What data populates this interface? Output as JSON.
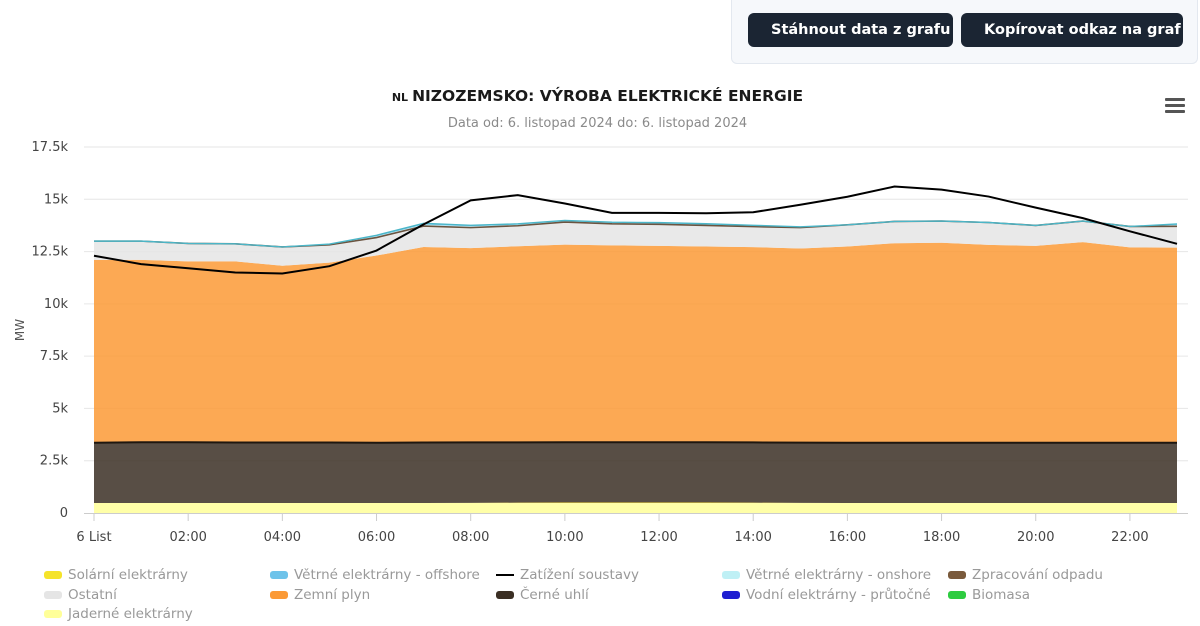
{
  "toolbar": {
    "download_label": "Stáhnout data z grafu",
    "copy_label": "Kopírovat odkaz na graf"
  },
  "chart_data": {
    "type": "area",
    "title_flag": "NL",
    "title": "NIZOZEMSKO: VÝROBA ELEKTRICKÉ ENERGIE",
    "subtitle": "Data od: 6. listopad 2024 do: 6. listopad 2024",
    "ylabel": "MW",
    "ylim": [
      0,
      17500
    ],
    "yticks": [
      0,
      2500,
      5000,
      7500,
      10000,
      12500,
      15000,
      17500
    ],
    "ytick_labels": [
      "0",
      "2.5k",
      "5k",
      "7.5k",
      "10k",
      "12.5k",
      "15k",
      "17.5k"
    ],
    "x": [
      0,
      1,
      2,
      3,
      4,
      5,
      6,
      7,
      8,
      9,
      10,
      11,
      12,
      13,
      14,
      15,
      16,
      17,
      18,
      19,
      20,
      21,
      22,
      23
    ],
    "xticks": [
      0,
      2,
      4,
      6,
      8,
      10,
      12,
      14,
      16,
      18,
      20,
      22
    ],
    "xtick_labels": [
      "6 List",
      "02:00",
      "04:00",
      "06:00",
      "08:00",
      "10:00",
      "12:00",
      "14:00",
      "16:00",
      "18:00",
      "20:00",
      "22:00"
    ],
    "stacked_series": [
      {
        "name": "Jaderné elektrárny",
        "color": "#ffff99",
        "values": [
          480,
          480,
          480,
          480,
          480,
          480,
          480,
          480,
          480,
          480,
          480,
          480,
          480,
          480,
          480,
          480,
          480,
          480,
          480,
          480,
          480,
          480,
          480,
          480
        ]
      },
      {
        "name": "Solární elektrárny",
        "color": "#f2d21b",
        "values": [
          0,
          0,
          0,
          0,
          0,
          0,
          0,
          0,
          5,
          15,
          20,
          25,
          25,
          20,
          15,
          5,
          0,
          0,
          0,
          0,
          0,
          0,
          0,
          0
        ]
      },
      {
        "name": "Černé uhlí",
        "color": "#3b2f24",
        "values": [
          2880,
          2900,
          2900,
          2890,
          2890,
          2890,
          2880,
          2890,
          2890,
          2880,
          2880,
          2880,
          2880,
          2880,
          2880,
          2880,
          2880,
          2880,
          2880,
          2880,
          2880,
          2880,
          2880,
          2880
        ]
      },
      {
        "name": "Zemní plyn",
        "color": "#fb9a36",
        "values": [
          8740,
          8720,
          8650,
          8660,
          8450,
          8600,
          8950,
          9350,
          9290,
          9380,
          9450,
          9410,
          9390,
          9360,
          9340,
          9280,
          9380,
          9540,
          9560,
          9460,
          9410,
          9590,
          9340,
          9330
        ]
      },
      {
        "name": "Ostatní",
        "color": "#e5e5e5",
        "values": [
          900,
          900,
          860,
          840,
          900,
          850,
          860,
          1000,
          980,
          980,
          1080,
          1030,
          1030,
          1010,
          980,
          1000,
          1040,
          1040,
          1040,
          1070,
          980,
          1010,
          1000,
          1020
        ]
      },
      {
        "name": "Zpracování odpadu",
        "color": "#7a5a3c",
        "values": [
          0,
          0,
          0,
          0,
          0,
          0,
          0,
          0,
          0,
          0,
          0,
          0,
          0,
          0,
          0,
          0,
          0,
          0,
          0,
          0,
          0,
          0,
          0,
          0
        ]
      },
      {
        "name": "Biomasa",
        "color": "#2ecc40",
        "values": [
          0,
          0,
          0,
          0,
          0,
          0,
          0,
          0,
          0,
          0,
          0,
          0,
          0,
          0,
          0,
          0,
          0,
          0,
          0,
          0,
          0,
          0,
          0,
          0
        ]
      },
      {
        "name": "Vodní elektrárny - průtočné",
        "color": "#1f1fd1",
        "values": [
          0,
          0,
          0,
          0,
          0,
          0,
          0,
          0,
          0,
          0,
          0,
          0,
          0,
          0,
          0,
          0,
          0,
          0,
          0,
          0,
          0,
          0,
          0,
          0
        ]
      },
      {
        "name": "Větrné elektrárny - onshore",
        "color": "#bff0f5",
        "values": [
          0,
          0,
          0,
          0,
          0,
          20,
          60,
          70,
          60,
          50,
          40,
          40,
          40,
          40,
          30,
          20,
          0,
          0,
          0,
          0,
          0,
          0,
          0,
          60
        ]
      },
      {
        "name": "Větrné elektrárny - offshore",
        "color": "#6ec3ea",
        "values": [
          0,
          0,
          0,
          0,
          0,
          20,
          50,
          60,
          50,
          40,
          40,
          40,
          40,
          40,
          30,
          20,
          0,
          0,
          0,
          0,
          0,
          0,
          0,
          50
        ]
      }
    ],
    "load_series": {
      "name": "Zatížení soustavy",
      "color": "#000000",
      "values": [
        12300,
        11900,
        11700,
        11500,
        11450,
        11800,
        12550,
        13800,
        14950,
        15200,
        14800,
        14350,
        14350,
        14330,
        14380,
        14740,
        15120,
        15610,
        15460,
        15130,
        14600,
        14100,
        13470,
        12870
      ]
    },
    "legend": {
      "placement": "bottom",
      "items": [
        {
          "label": "Solární elektrárny",
          "color": "#f5e32a",
          "kind": "area"
        },
        {
          "label": "Větrné elektrárny - offshore",
          "color": "#6ec3ea",
          "kind": "area"
        },
        {
          "label": "Zatížení soustavy",
          "color": "#000000",
          "kind": "line"
        },
        {
          "label": "Větrné elektrárny - onshore",
          "color": "#bff0f5",
          "kind": "area"
        },
        {
          "label": "Zpracování odpadu",
          "color": "#7a5a3c",
          "kind": "area"
        },
        {
          "label": "Ostatní",
          "color": "#e5e5e5",
          "kind": "area"
        },
        {
          "label": "Zemní plyn",
          "color": "#fb9a36",
          "kind": "area"
        },
        {
          "label": "Černé uhlí",
          "color": "#3b2f24",
          "kind": "area"
        },
        {
          "label": "Vodní elektrárny - průtočné",
          "color": "#1f1fd1",
          "kind": "area"
        },
        {
          "label": "Biomasa",
          "color": "#2ecc40",
          "kind": "area"
        },
        {
          "label": "Jaderné elektrárny",
          "color": "#ffff99",
          "kind": "area"
        }
      ]
    }
  }
}
